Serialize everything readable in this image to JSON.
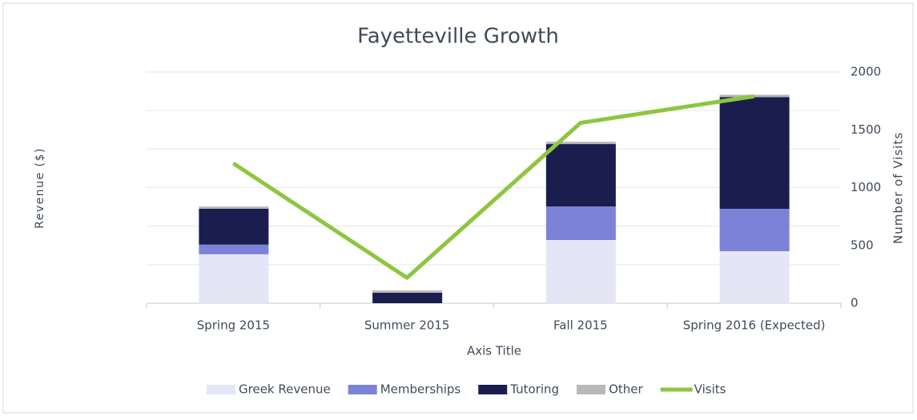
{
  "chart_data": {
    "type": "bar-line",
    "title": "Fayetteville Growth",
    "x_label": "Axis Title",
    "y_label": "Revenue ($)",
    "y2_label": "Number of Visits",
    "categories": [
      "Spring 2015",
      "Summer 2015",
      "Fall 2015",
      "Spring 2016 (Expected)"
    ],
    "series": [
      {
        "name": "Greek Revenue",
        "color": "#e4e6f5",
        "values": [
          1270,
          0,
          1640,
          1350
        ]
      },
      {
        "name": "Memberships",
        "color": "#7b82d8",
        "values": [
          250,
          0,
          870,
          1100
        ]
      },
      {
        "name": "Tutoring",
        "color": "#1a1d4e",
        "values": [
          930,
          270,
          1620,
          2900
        ]
      },
      {
        "name": "Other",
        "color": "#b8b8b8",
        "values": [
          60,
          60,
          60,
          60
        ]
      },
      {
        "name": "Visits",
        "color": "#8dc63f",
        "axis": "y2",
        "values": [
          1210,
          220,
          1560,
          1790
        ]
      }
    ],
    "ylim": [
      0,
      6000
    ],
    "yticks": [
      0,
      1000,
      2000,
      3000,
      4000,
      5000,
      6000
    ],
    "y2lim": [
      0,
      2000
    ],
    "y2ticks": [
      0,
      500,
      1000,
      1500,
      2000
    ],
    "grid": true,
    "legend": "bottom"
  }
}
